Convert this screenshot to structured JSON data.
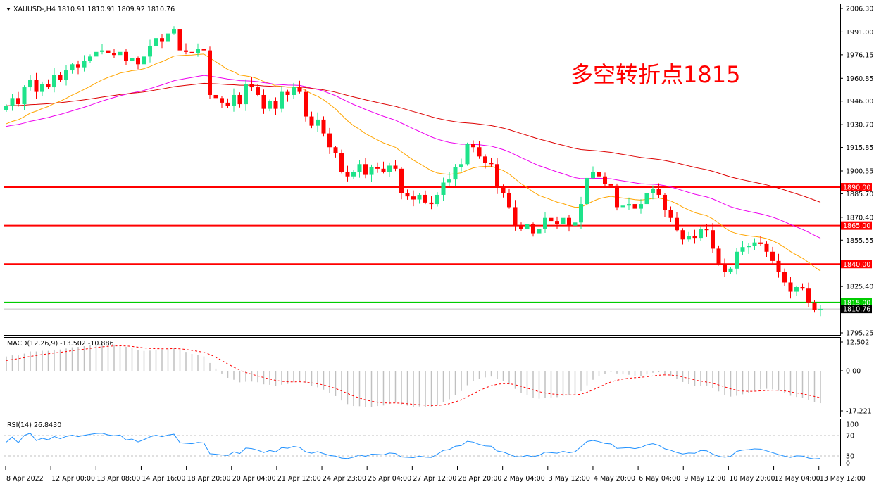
{
  "header": {
    "symbol_line": "XAUUSD-,H4  1810.91 1810.91 1809.92 1810.76"
  },
  "annotation": "多空转折点1815",
  "colors": {
    "bull": "#1ee38a",
    "bear": "#ff0000",
    "ma_fast": "#ffa500",
    "ma_mid": "#ee00ee",
    "ma_slow": "#dd0000",
    "level": "#ff0000",
    "pivot": "#00cc00",
    "macd_hist": "#c0c0c0",
    "macd_signal": "#ff0000",
    "rsi": "#1e90ff"
  },
  "chart_data": {
    "type": "candlestick",
    "symbol": "XAUUSD-",
    "timeframe": "H4",
    "y_ticks": [
      "2006.30",
      "1991.00",
      "1976.15",
      "1960.85",
      "1946.00",
      "1930.70",
      "1915.85",
      "1900.55",
      "1885.70",
      "1870.40",
      "1855.55",
      "1825.40",
      "1795.25"
    ],
    "ylim": [
      1795.25,
      2006.3
    ],
    "closes": [
      1943,
      1948,
      1944,
      1955,
      1960,
      1952,
      1957,
      1955,
      1963,
      1960,
      1966,
      1970,
      1968,
      1972,
      1975,
      1978,
      1979,
      1977,
      1976,
      1978,
      1972,
      1974,
      1970,
      1975,
      1982,
      1987,
      1985,
      1990,
      1993,
      1979,
      1978,
      1977,
      1980,
      1979,
      1950,
      1948,
      1945,
      1943,
      1950,
      1944,
      1957,
      1955,
      1950,
      1941,
      1946,
      1941,
      1952,
      1950,
      1955,
      1952,
      1936,
      1930,
      1934,
      1925,
      1916,
      1912,
      1900,
      1897,
      1900,
      1905,
      1898,
      1903,
      1902,
      1900,
      1904,
      1902,
      1886,
      1884,
      1882,
      1885,
      1880,
      1879,
      1885,
      1893,
      1895,
      1903,
      1905,
      1918,
      1916,
      1910,
      1906,
      1905,
      1890,
      1886,
      1877,
      1865,
      1863,
      1866,
      1860,
      1863,
      1870,
      1868,
      1866,
      1870,
      1865,
      1867,
      1879,
      1896,
      1900,
      1897,
      1892,
      1891,
      1877,
      1878,
      1879,
      1876,
      1879,
      1886,
      1889,
      1885,
      1875,
      1870,
      1862,
      1856,
      1858,
      1857,
      1863,
      1862,
      1850,
      1840,
      1835,
      1837,
      1848,
      1851,
      1852,
      1854,
      1853,
      1848,
      1842,
      1835,
      1828,
      1822,
      1825,
      1824,
      1815,
      1810,
      1810.76
    ],
    "moving_averages": [
      {
        "color_key": "ma_fast",
        "period": 20,
        "start": 1930
      },
      {
        "color_key": "ma_mid",
        "period": 50,
        "start": 1929
      },
      {
        "color_key": "ma_slow",
        "period": 100,
        "start": 1943
      }
    ],
    "levels": [
      {
        "price": 1890.0,
        "label": "1890.00",
        "color_key": "level"
      },
      {
        "price": 1865.0,
        "label": "1865.00",
        "color_key": "level"
      },
      {
        "price": 1840.0,
        "label": "1840.00",
        "color_key": "level"
      },
      {
        "price": 1815.0,
        "label": "1815.00",
        "color_key": "pivot"
      }
    ],
    "current_price": {
      "price": 1810.76,
      "label": "1810.76"
    },
    "x_ticks": [
      "8 Apr 2022",
      "12 Apr 00:00",
      "13 Apr 08:00",
      "14 Apr 16:00",
      "18 Apr 20:00",
      "20 Apr 04:00",
      "21 Apr 12:00",
      "24 Apr 23:00",
      "26 Apr 04:00",
      "27 Apr 12:00",
      "28 Apr 20:00",
      "2 May 04:00",
      "3 May 12:00",
      "4 May 20:00",
      "6 May 04:00",
      "9 May 12:00",
      "10 May 20:00",
      "12 May 04:00",
      "13 May 12:00"
    ],
    "macd": {
      "label": "MACD(12,26,9) -13.502 -10.886",
      "params": [
        12,
        26,
        9
      ],
      "ylim": [
        -17.221,
        12.502
      ],
      "y_ticks": [
        "12.502",
        "0.00",
        "-17.221"
      ]
    },
    "rsi": {
      "label": "RSI(14) 26.8430",
      "period": 14,
      "levels": [
        70,
        30
      ],
      "y_ticks": [
        "100",
        "70",
        "30",
        "0"
      ]
    }
  }
}
